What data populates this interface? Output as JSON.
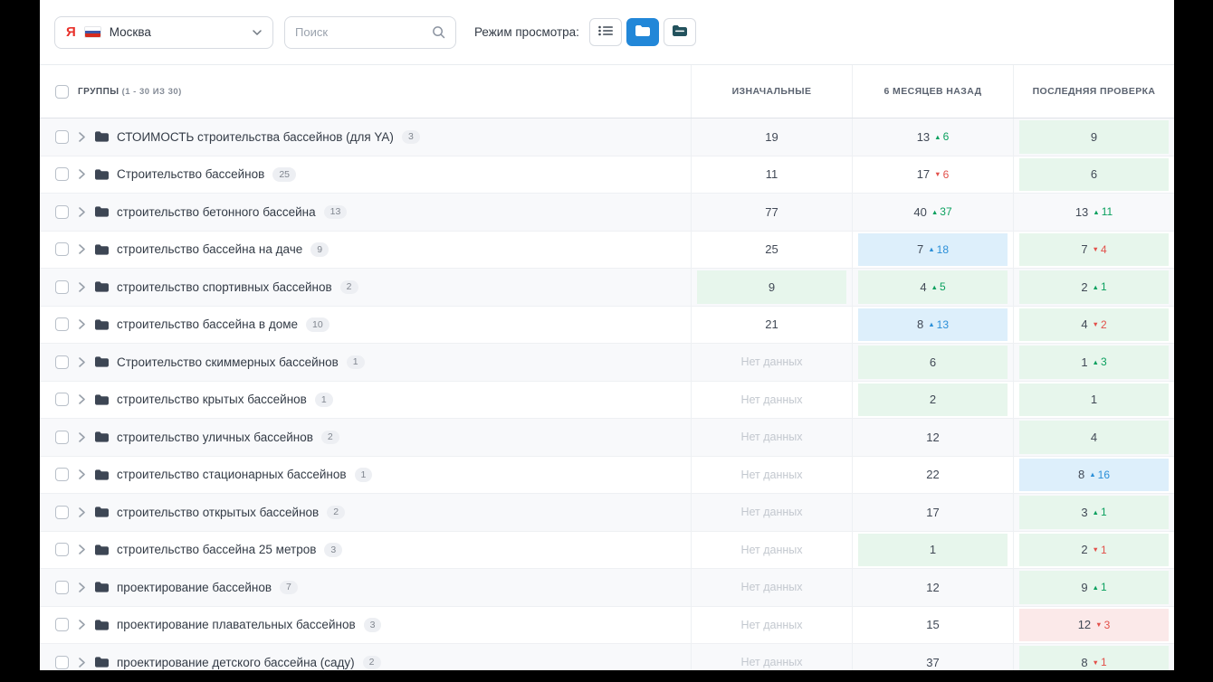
{
  "toolbar": {
    "project": {
      "label": "Москва",
      "engine_icon": "yandex-icon",
      "flag_icon": "russia-flag-icon"
    },
    "search_placeholder": "Поиск",
    "view_mode_label": "Режим просмотра:",
    "view_buttons": [
      {
        "name": "list-view",
        "active": false
      },
      {
        "name": "folder-view",
        "active": true
      },
      {
        "name": "folders-dark-view",
        "active": false
      }
    ]
  },
  "table": {
    "groups_label": "ГРУППЫ",
    "groups_count": "(1 - 30 ИЗ 30)",
    "columns": [
      "ИЗНАЧАЛЬНЫЕ",
      "6 МЕСЯЦЕВ НАЗАД",
      "ПОСЛЕДНЯЯ ПРОВЕРКА"
    ],
    "no_data_label": "Нет данных",
    "rows": [
      {
        "name": "СТОИМОСТЬ строительства бассейнов (для YA)",
        "count": "3",
        "cells": [
          {
            "value": "19"
          },
          {
            "value": "13",
            "delta": "6",
            "trend": "up"
          },
          {
            "value": "9",
            "bg": "green"
          }
        ]
      },
      {
        "name": "Строительство бассейнов",
        "count": "25",
        "cells": [
          {
            "value": "11"
          },
          {
            "value": "17",
            "delta": "6",
            "trend": "down"
          },
          {
            "value": "6",
            "bg": "green"
          }
        ]
      },
      {
        "name": "строительство бетонного бассейна",
        "count": "13",
        "cells": [
          {
            "value": "77"
          },
          {
            "value": "40",
            "delta": "37",
            "trend": "up"
          },
          {
            "value": "13",
            "delta": "11",
            "trend": "up"
          }
        ]
      },
      {
        "name": "строительство бассейна на даче",
        "count": "9",
        "cells": [
          {
            "value": "25"
          },
          {
            "value": "7",
            "delta": "18",
            "trend": "up",
            "bg": "blue"
          },
          {
            "value": "7",
            "delta": "4",
            "trend": "down",
            "bg": "green"
          }
        ]
      },
      {
        "name": "строительство спортивных бассейнов",
        "count": "2",
        "cells": [
          {
            "value": "9",
            "bg": "green"
          },
          {
            "value": "4",
            "delta": "5",
            "trend": "up",
            "bg": "green"
          },
          {
            "value": "2",
            "delta": "1",
            "trend": "up",
            "bg": "green"
          }
        ]
      },
      {
        "name": "строительство бассейна в доме",
        "count": "10",
        "cells": [
          {
            "value": "21"
          },
          {
            "value": "8",
            "delta": "13",
            "trend": "up",
            "bg": "blue"
          },
          {
            "value": "4",
            "delta": "2",
            "trend": "down",
            "bg": "green"
          }
        ]
      },
      {
        "name": "Строительство скиммерных бассейнов",
        "count": "1",
        "cells": [
          {
            "no_data": true
          },
          {
            "value": "6",
            "bg": "green"
          },
          {
            "value": "1",
            "delta": "3",
            "trend": "up",
            "bg": "green"
          }
        ]
      },
      {
        "name": "строительство крытых бассейнов",
        "count": "1",
        "cells": [
          {
            "no_data": true
          },
          {
            "value": "2",
            "bg": "green"
          },
          {
            "value": "1",
            "bg": "green"
          }
        ]
      },
      {
        "name": "строительство уличных бассейнов",
        "count": "2",
        "cells": [
          {
            "no_data": true
          },
          {
            "value": "12"
          },
          {
            "value": "4",
            "bg": "green"
          }
        ]
      },
      {
        "name": "строительство стационарных бассейнов",
        "count": "1",
        "cells": [
          {
            "no_data": true
          },
          {
            "value": "22"
          },
          {
            "value": "8",
            "delta": "16",
            "trend": "up",
            "bg": "blue"
          }
        ]
      },
      {
        "name": "строительство открытых бассейнов",
        "count": "2",
        "cells": [
          {
            "no_data": true
          },
          {
            "value": "17"
          },
          {
            "value": "3",
            "delta": "1",
            "trend": "up",
            "bg": "green"
          }
        ]
      },
      {
        "name": "строительство бассейна 25 метров",
        "count": "3",
        "cells": [
          {
            "no_data": true
          },
          {
            "value": "1",
            "bg": "green"
          },
          {
            "value": "2",
            "delta": "1",
            "trend": "down",
            "bg": "green"
          }
        ]
      },
      {
        "name": "проектирование бассейнов",
        "count": "7",
        "cells": [
          {
            "no_data": true
          },
          {
            "value": "12"
          },
          {
            "value": "9",
            "delta": "1",
            "trend": "up",
            "bg": "green"
          }
        ]
      },
      {
        "name": "проектирование плавательных бассейнов",
        "count": "3",
        "cells": [
          {
            "no_data": true
          },
          {
            "value": "15"
          },
          {
            "value": "12",
            "delta": "3",
            "trend": "down",
            "bg": "red"
          }
        ]
      },
      {
        "name": "проектирование детского бассейна (саду)",
        "count": "2",
        "cells": [
          {
            "no_data": true
          },
          {
            "value": "37"
          },
          {
            "value": "8",
            "delta": "1",
            "trend": "down",
            "bg": "green"
          }
        ]
      }
    ]
  },
  "colors": {
    "accent_blue": "#2287d8",
    "cell_green_bg": "#e7f6ec",
    "cell_blue_bg": "#ddeffb",
    "cell_red_bg": "#fbe9e9",
    "delta_up": "#0aa05e",
    "delta_down": "#e2504a",
    "delta_up_in_blue": "#2b8fd8",
    "no_data_text": "#c3c8cf"
  }
}
